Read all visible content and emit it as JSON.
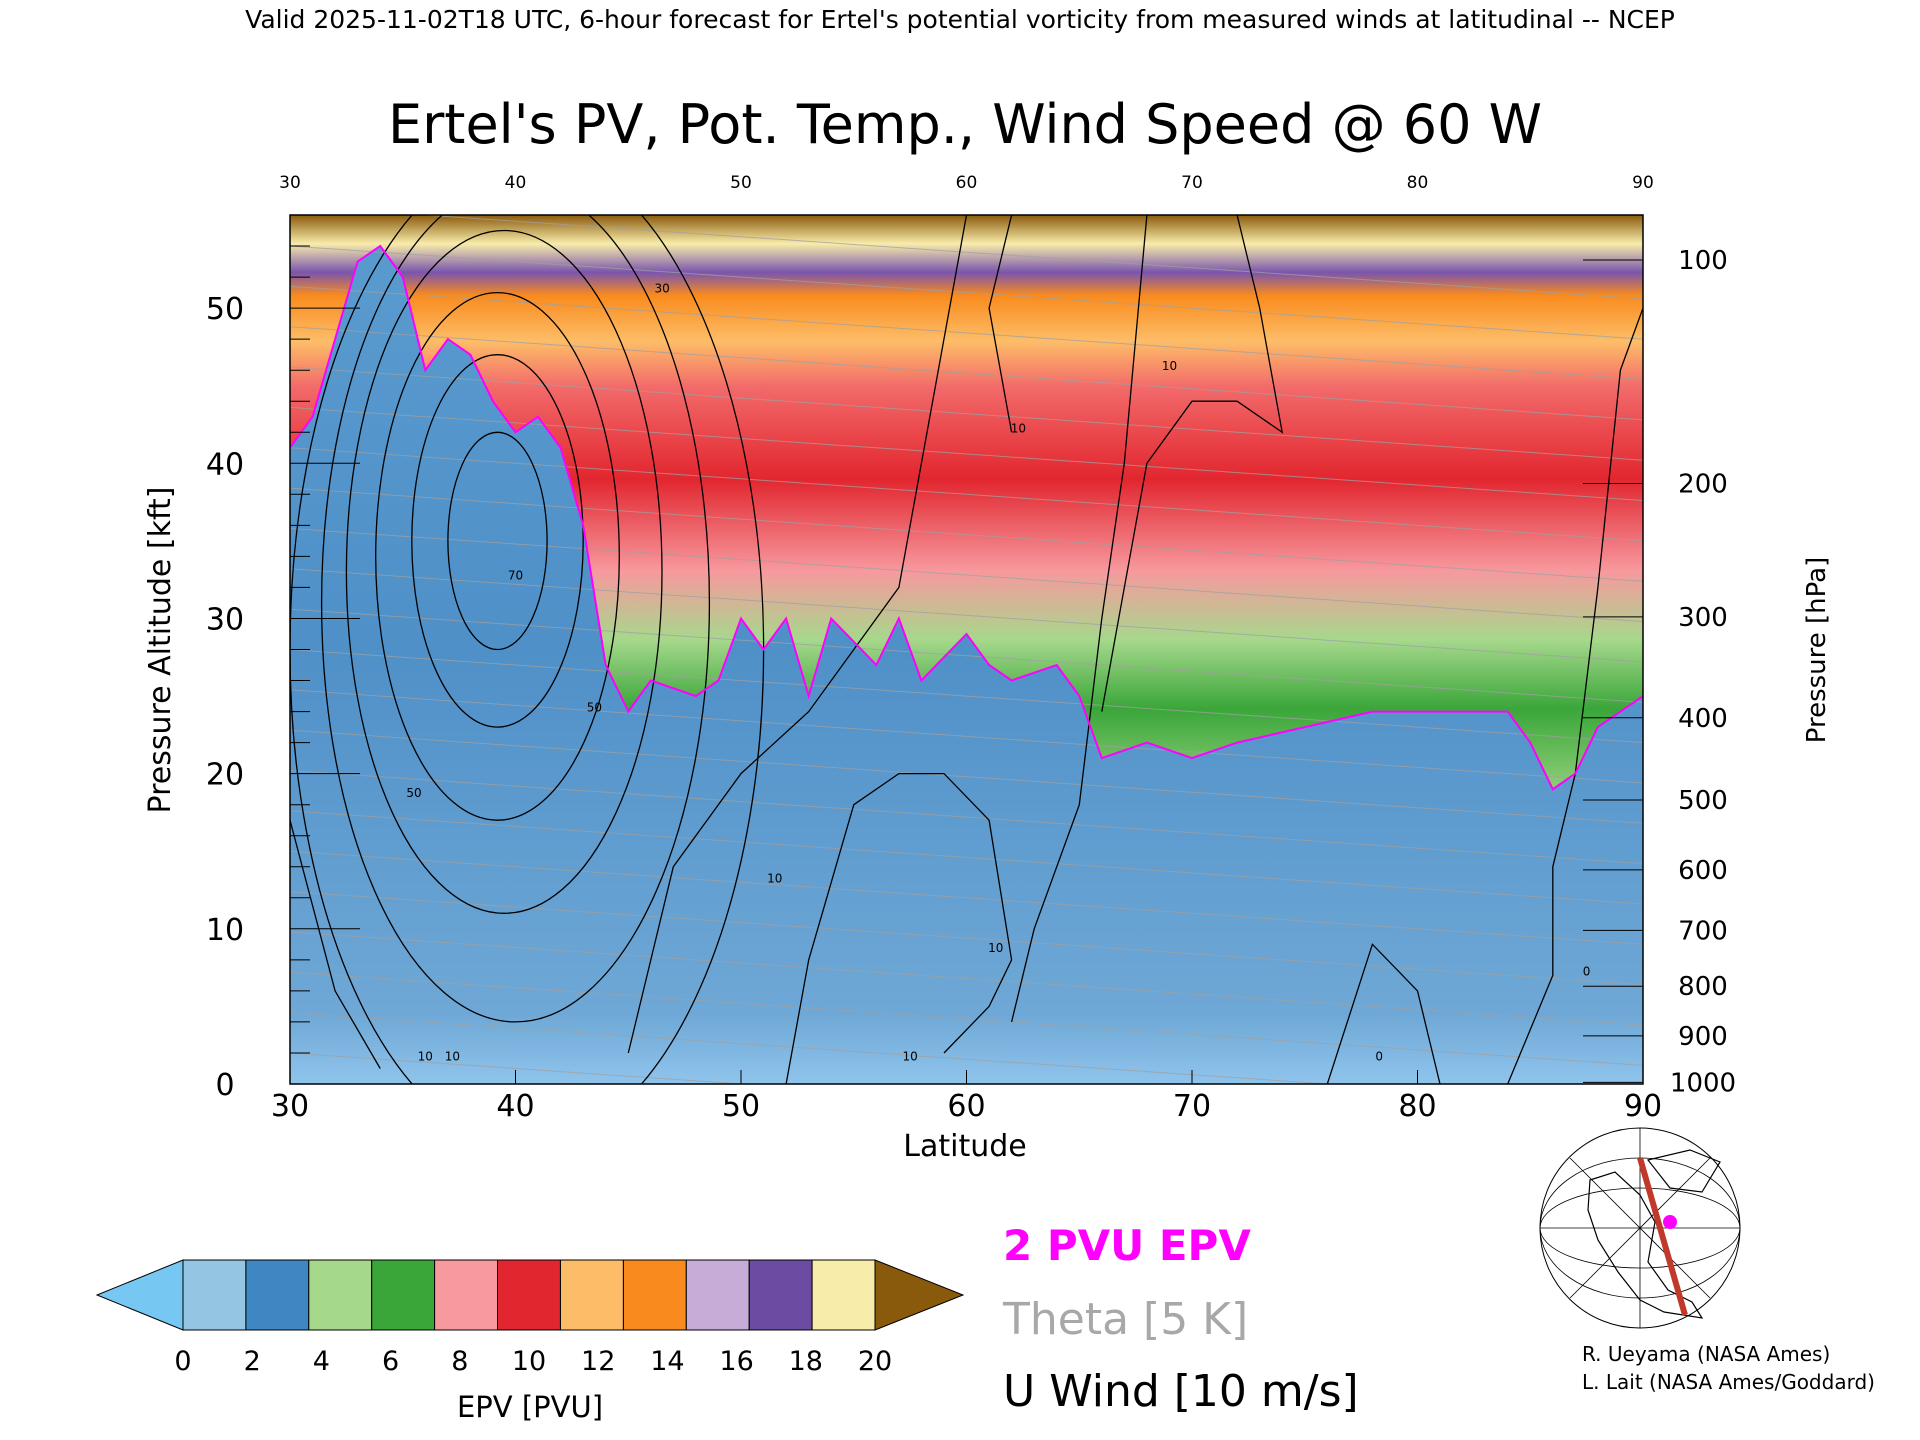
{
  "header": {
    "valid_line": "Valid 2025-11-02T18 UTC, 6-hour forecast for Ertel's potential vorticity from measured winds at latitudinal -- NCEP"
  },
  "chart_data": {
    "type": "heatmap",
    "title": "Ertel's PV, Pot. Temp., Wind Speed @ 60 W",
    "xlabel": "Latitude",
    "ylabel": "Pressure Altitude [kft]",
    "ylabel_right": "Pressure [hPa]",
    "xlim": [
      30,
      90
    ],
    "ylim": [
      0,
      56
    ],
    "x_ticks": [
      "30",
      "40",
      "50",
      "60",
      "70",
      "80",
      "90"
    ],
    "x_ticks_top": [
      "30",
      "40",
      "50",
      "60",
      "70",
      "80",
      "90"
    ],
    "y_ticks": [
      "0",
      "10",
      "20",
      "30",
      "40",
      "50"
    ],
    "pressure_ticks": [
      {
        "label": "100",
        "kft": 53.1
      },
      {
        "label": "200",
        "kft": 38.7
      },
      {
        "label": "300",
        "kft": 30.1
      },
      {
        "label": "400",
        "kft": 23.6
      },
      {
        "label": "500",
        "kft": 18.3
      },
      {
        "label": "600",
        "kft": 13.8
      },
      {
        "label": "700",
        "kft": 9.9
      },
      {
        "label": "800",
        "kft": 6.3
      },
      {
        "label": "900",
        "kft": 3.1
      },
      {
        "label": "1000",
        "kft": 0.1
      }
    ],
    "tropopause_2pvu_kft": [
      {
        "lat": 30,
        "kft": 41
      },
      {
        "lat": 31,
        "kft": 43
      },
      {
        "lat": 32,
        "kft": 48
      },
      {
        "lat": 33,
        "kft": 53
      },
      {
        "lat": 34,
        "kft": 54
      },
      {
        "lat": 35,
        "kft": 52
      },
      {
        "lat": 36,
        "kft": 46
      },
      {
        "lat": 37,
        "kft": 48
      },
      {
        "lat": 38,
        "kft": 47
      },
      {
        "lat": 39,
        "kft": 44
      },
      {
        "lat": 40,
        "kft": 42
      },
      {
        "lat": 41,
        "kft": 43
      },
      {
        "lat": 42,
        "kft": 41
      },
      {
        "lat": 43,
        "kft": 36
      },
      {
        "lat": 44,
        "kft": 27
      },
      {
        "lat": 45,
        "kft": 24
      },
      {
        "lat": 46,
        "kft": 26
      },
      {
        "lat": 48,
        "kft": 25
      },
      {
        "lat": 49,
        "kft": 26
      },
      {
        "lat": 50,
        "kft": 30
      },
      {
        "lat": 51,
        "kft": 28
      },
      {
        "lat": 52,
        "kft": 30
      },
      {
        "lat": 53,
        "kft": 25
      },
      {
        "lat": 54,
        "kft": 30
      },
      {
        "lat": 56,
        "kft": 27
      },
      {
        "lat": 57,
        "kft": 30
      },
      {
        "lat": 58,
        "kft": 26
      },
      {
        "lat": 60,
        "kft": 29
      },
      {
        "lat": 61,
        "kft": 27
      },
      {
        "lat": 62,
        "kft": 26
      },
      {
        "lat": 64,
        "kft": 27
      },
      {
        "lat": 65,
        "kft": 25
      },
      {
        "lat": 66,
        "kft": 21
      },
      {
        "lat": 68,
        "kft": 22
      },
      {
        "lat": 70,
        "kft": 21
      },
      {
        "lat": 72,
        "kft": 22
      },
      {
        "lat": 75,
        "kft": 23
      },
      {
        "lat": 78,
        "kft": 24
      },
      {
        "lat": 80,
        "kft": 24
      },
      {
        "lat": 82,
        "kft": 24
      },
      {
        "lat": 84,
        "kft": 24
      },
      {
        "lat": 85,
        "kft": 22
      },
      {
        "lat": 86,
        "kft": 19
      },
      {
        "lat": 87,
        "kft": 20
      },
      {
        "lat": 88,
        "kft": 23
      },
      {
        "lat": 90,
        "kft": 25
      }
    ],
    "wind_contour_labels": [
      {
        "text": "70",
        "lat": 40.0,
        "kft": 32.5
      },
      {
        "text": "50",
        "lat": 43.5,
        "kft": 24.0
      },
      {
        "text": "50",
        "lat": 35.5,
        "kft": 18.5
      },
      {
        "text": "10",
        "lat": 36.0,
        "kft": 1.5
      },
      {
        "text": "10",
        "lat": 37.2,
        "kft": 1.5
      },
      {
        "text": "10",
        "lat": 51.5,
        "kft": 13.0
      },
      {
        "text": "10",
        "lat": 61.3,
        "kft": 8.5
      },
      {
        "text": "10",
        "lat": 57.5,
        "kft": 1.5
      },
      {
        "text": "10",
        "lat": 69.0,
        "kft": 46.0
      },
      {
        "text": "10",
        "lat": 62.3,
        "kft": 42.0
      },
      {
        "text": "30",
        "lat": 46.5,
        "kft": 51.0
      },
      {
        "text": "0",
        "lat": 78.3,
        "kft": 1.5
      },
      {
        "text": "0",
        "lat": 87.5,
        "kft": 7.0
      }
    ],
    "legend_labels": [
      "2 PVU EPV",
      "Theta [5 K]",
      "U Wind [10 m/s]"
    ],
    "colorbar": {
      "label": "EPV [PVU]",
      "ticks": [
        "0",
        "2",
        "4",
        "6",
        "8",
        "10",
        "12",
        "14",
        "16",
        "18",
        "20"
      ],
      "colors": [
        "#94c6e4",
        "#3f87c2",
        "#a6d88c",
        "#3aa63a",
        "#f7999e",
        "#e2262f",
        "#fdbd68",
        "#f98b1e",
        "#c6acd6",
        "#6c4ba3",
        "#f8ecaa"
      ],
      "under_color": "#76c7f2",
      "over_color": "#8a5a0c"
    }
  },
  "credits": {
    "line1": "R. Ueyama (NASA Ames)",
    "line2": "L. Lait (NASA Ames/Goddard)"
  },
  "colors": {
    "tropopause": "#ff00ff",
    "theta": "#a0a0a0",
    "wind": "#000000"
  }
}
